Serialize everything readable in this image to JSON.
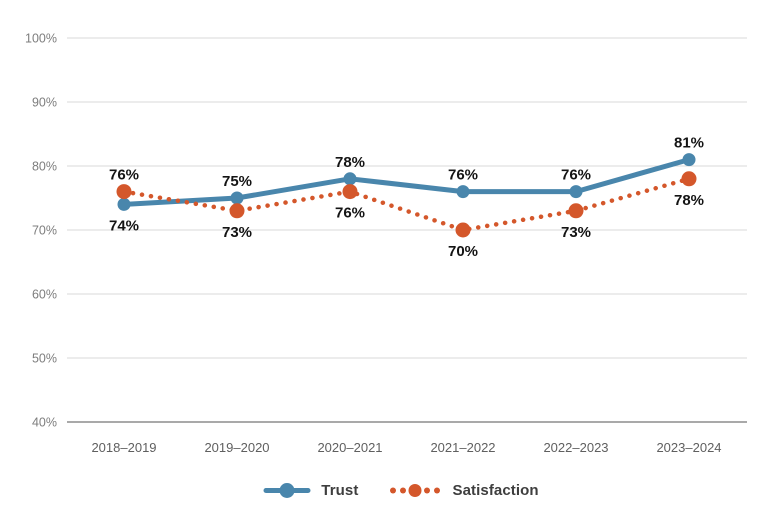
{
  "chart_data": {
    "type": "line",
    "title": "",
    "xlabel": "",
    "ylabel": "",
    "categories": [
      "2018–2019",
      "2019–2020",
      "2020–2021",
      "2021–2022",
      "2022–2023",
      "2023–2024"
    ],
    "series": [
      {
        "name": "Trust",
        "color": "#4986AC",
        "style": "solid",
        "values": [
          74,
          75,
          78,
          76,
          76,
          81
        ],
        "labels": [
          "74%",
          "75%",
          "78%",
          "76%",
          "76%",
          "81%"
        ],
        "label_positions": [
          "below",
          "above",
          "above",
          "above",
          "above",
          "above"
        ]
      },
      {
        "name": "Satisfaction",
        "color": "#D4572B",
        "style": "dotted",
        "values": [
          76,
          73,
          76,
          70,
          73,
          78
        ],
        "labels": [
          "76%",
          "73%",
          "76%",
          "70%",
          "73%",
          "78%"
        ],
        "label_positions": [
          "above",
          "below",
          "below",
          "below",
          "below",
          "below"
        ]
      }
    ],
    "yticks": [
      {
        "label": "100%",
        "value": 100
      },
      {
        "label": "90%",
        "value": 90
      },
      {
        "label": "80%",
        "value": 80
      },
      {
        "label": "70%",
        "value": 70
      },
      {
        "label": "60%",
        "value": 60
      },
      {
        "label": "50%",
        "value": 50
      },
      {
        "label": "40%",
        "value": 40
      }
    ],
    "ylim": [
      40,
      100
    ],
    "grid": true,
    "legend_position": "bottom"
  }
}
